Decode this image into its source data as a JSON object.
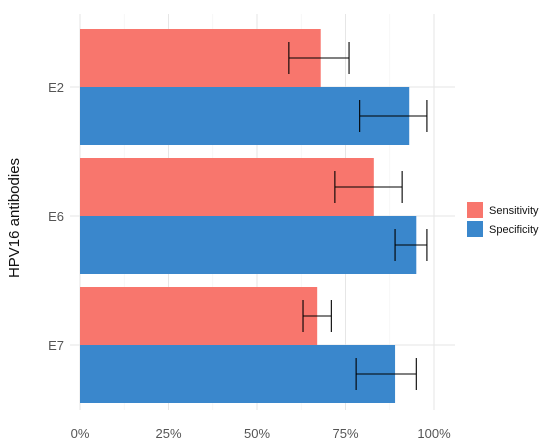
{
  "chart_data": {
    "type": "bar",
    "orientation": "horizontal",
    "categories": [
      "E2",
      "E6",
      "E7"
    ],
    "series": [
      {
        "name": "Sensitivity",
        "color": "#F8766D",
        "values": [
          68,
          83,
          67
        ],
        "error_low": [
          59,
          72,
          63
        ],
        "error_high": [
          76,
          91,
          71
        ]
      },
      {
        "name": "Specificity",
        "color": "#3A87CC",
        "values": [
          93,
          95,
          89
        ],
        "error_low": [
          79,
          89,
          78
        ],
        "error_high": [
          98,
          98,
          95
        ]
      }
    ],
    "xlabel": "",
    "ylabel": "HPV16 antibodies",
    "xlim": [
      0,
      100
    ],
    "x_ticks": [
      "0%",
      "25%",
      "50%",
      "75%",
      "100%"
    ],
    "grid": true,
    "legend_position": "right"
  }
}
